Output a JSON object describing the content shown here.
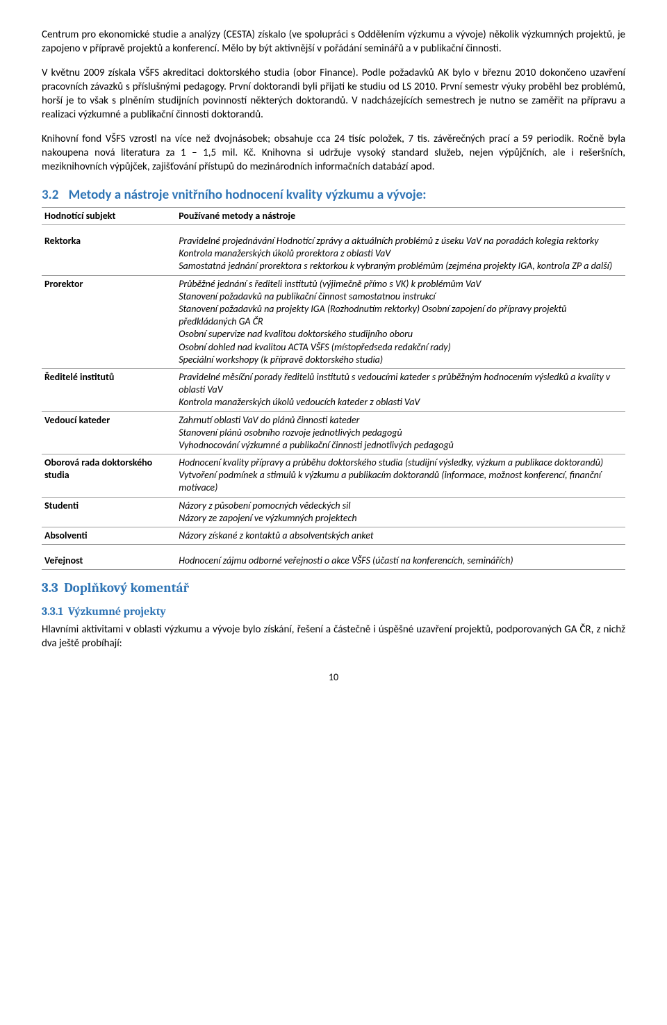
{
  "para1": "Centrum pro ekonomické studie a analýzy (CESTA) získalo (ve spolupráci s Oddělením výzkumu a vývoje) několik výzkumných projektů, je zapojeno v přípravě projektů a konferencí. Mělo by být aktivnější v pořádání seminářů a v publikační činnosti.",
  "para2": "V květnu 2009 získala VŠFS akreditaci doktorského studia (obor Finance). Podle požadavků AK bylo v březnu 2010 dokončeno uzavření pracovních závazků s příslušnými pedagogy. První doktorandi byli přijati ke studiu od LS 2010. První semestr výuky proběhl bez problémů, horší je to však s plněním studijních povinností některých doktorandů. V nadcházejících semestrech je nutno se zaměřit na přípravu a realizaci výzkumné a publikační činnosti doktorandů.",
  "para3": "Knihovní fond VŠFS vzrostl na více než dvojnásobek; obsahuje cca 24 tisíc položek, 7 tis. závěrečných prací a 59 periodik. Ročně byla nakoupena nová literatura za 1 – 1,5 mil. Kč. Knihovna si udržuje vysoký standard služeb, nejen výpůjčních, ale i rešeršních, meziknihovních výpůjček, zajišťování přístupů do mezinárodních informačních databází apod.",
  "sec32": {
    "num": "3.2",
    "title": "Metody a nástroje vnitřního hodnocení kvality výzkumu a vývoje:",
    "header_left": "Hodnotící subjekt",
    "header_right": "Používané metody a nástroje",
    "rows": [
      {
        "left": "Rektorka",
        "right": "Pravidelné projednávání Hodnotící zprávy a aktuálních problémů z úseku VaV na poradách kolegia rektorky\nKontrola manažerských úkolů prorektora z oblasti VaV\nSamostatná jednání prorektora s rektorkou k vybraným problémům (zejména projekty IGA, kontrola ZP a další)"
      },
      {
        "left": "Prorektor",
        "right": "Průběžné jednání s řediteli institutů (výjimečně přímo s VK) k problémům VaV\nStanovení požadavků na publikační činnost samostatnou instrukcí\nStanovení požadavků na projekty IGA (Rozhodnutím rektorky) Osobní zapojení do přípravy projektů předkládaných GA ČR\nOsobní supervize nad kvalitou doktorského studijního oboru\nOsobní dohled nad kvalitou ACTA VŠFS (místopředseda redakční rady)\nSpeciální workshopy (k přípravě doktorského studia)"
      },
      {
        "left": "Ředitelé institutů",
        "right": "Pravidelné měsíční porady ředitelů institutů s vedoucími kateder s průběžným hodnocením výsledků a kvality v oblasti VaV\nKontrola manažerských úkolů vedoucích kateder z oblasti VaV"
      },
      {
        "left": "Vedoucí kateder",
        "right": "Zahrnutí oblasti VaV do plánů činnosti kateder\nStanovení plánů osobního rozvoje jednotlivých pedagogů\nVyhodnocování výzkumné a publikační činnosti jednotlivých pedagogů"
      },
      {
        "left": "Oborová rada doktorského studia",
        "right": "Hodnocení kvality přípravy a průběhu doktorského studia (studijní výsledky, výzkum a publikace doktorandů)\nVytvoření podmínek a stimulů k výzkumu a publikacím doktorandů (informace, možnost konferencí, finanční motivace)"
      },
      {
        "left": "Studenti",
        "right": "Názory z působení pomocných vědeckých sil\nNázory ze zapojení ve výzkumných projektech"
      },
      {
        "left": "Absolventi",
        "right": "Názory získané z kontaktů a absolventských anket"
      },
      {
        "left": "Veřejnost",
        "right": "Hodnocení zájmu odborné veřejnosti o akce VŠFS (účastí na konferencích, seminářích)"
      }
    ]
  },
  "sec33": {
    "num": "3.3",
    "title": "Doplňkový komentář"
  },
  "sec331": {
    "num": "3.3.1",
    "title": "Výzkumné projekty",
    "para": "Hlavními aktivitami v oblasti výzkumu a vývoje bylo získání, řešení a částečně i úspěšné uzavření projektů, podporovaných GA ČR, z nichž dva ještě probíhají:"
  },
  "page_number": "10"
}
